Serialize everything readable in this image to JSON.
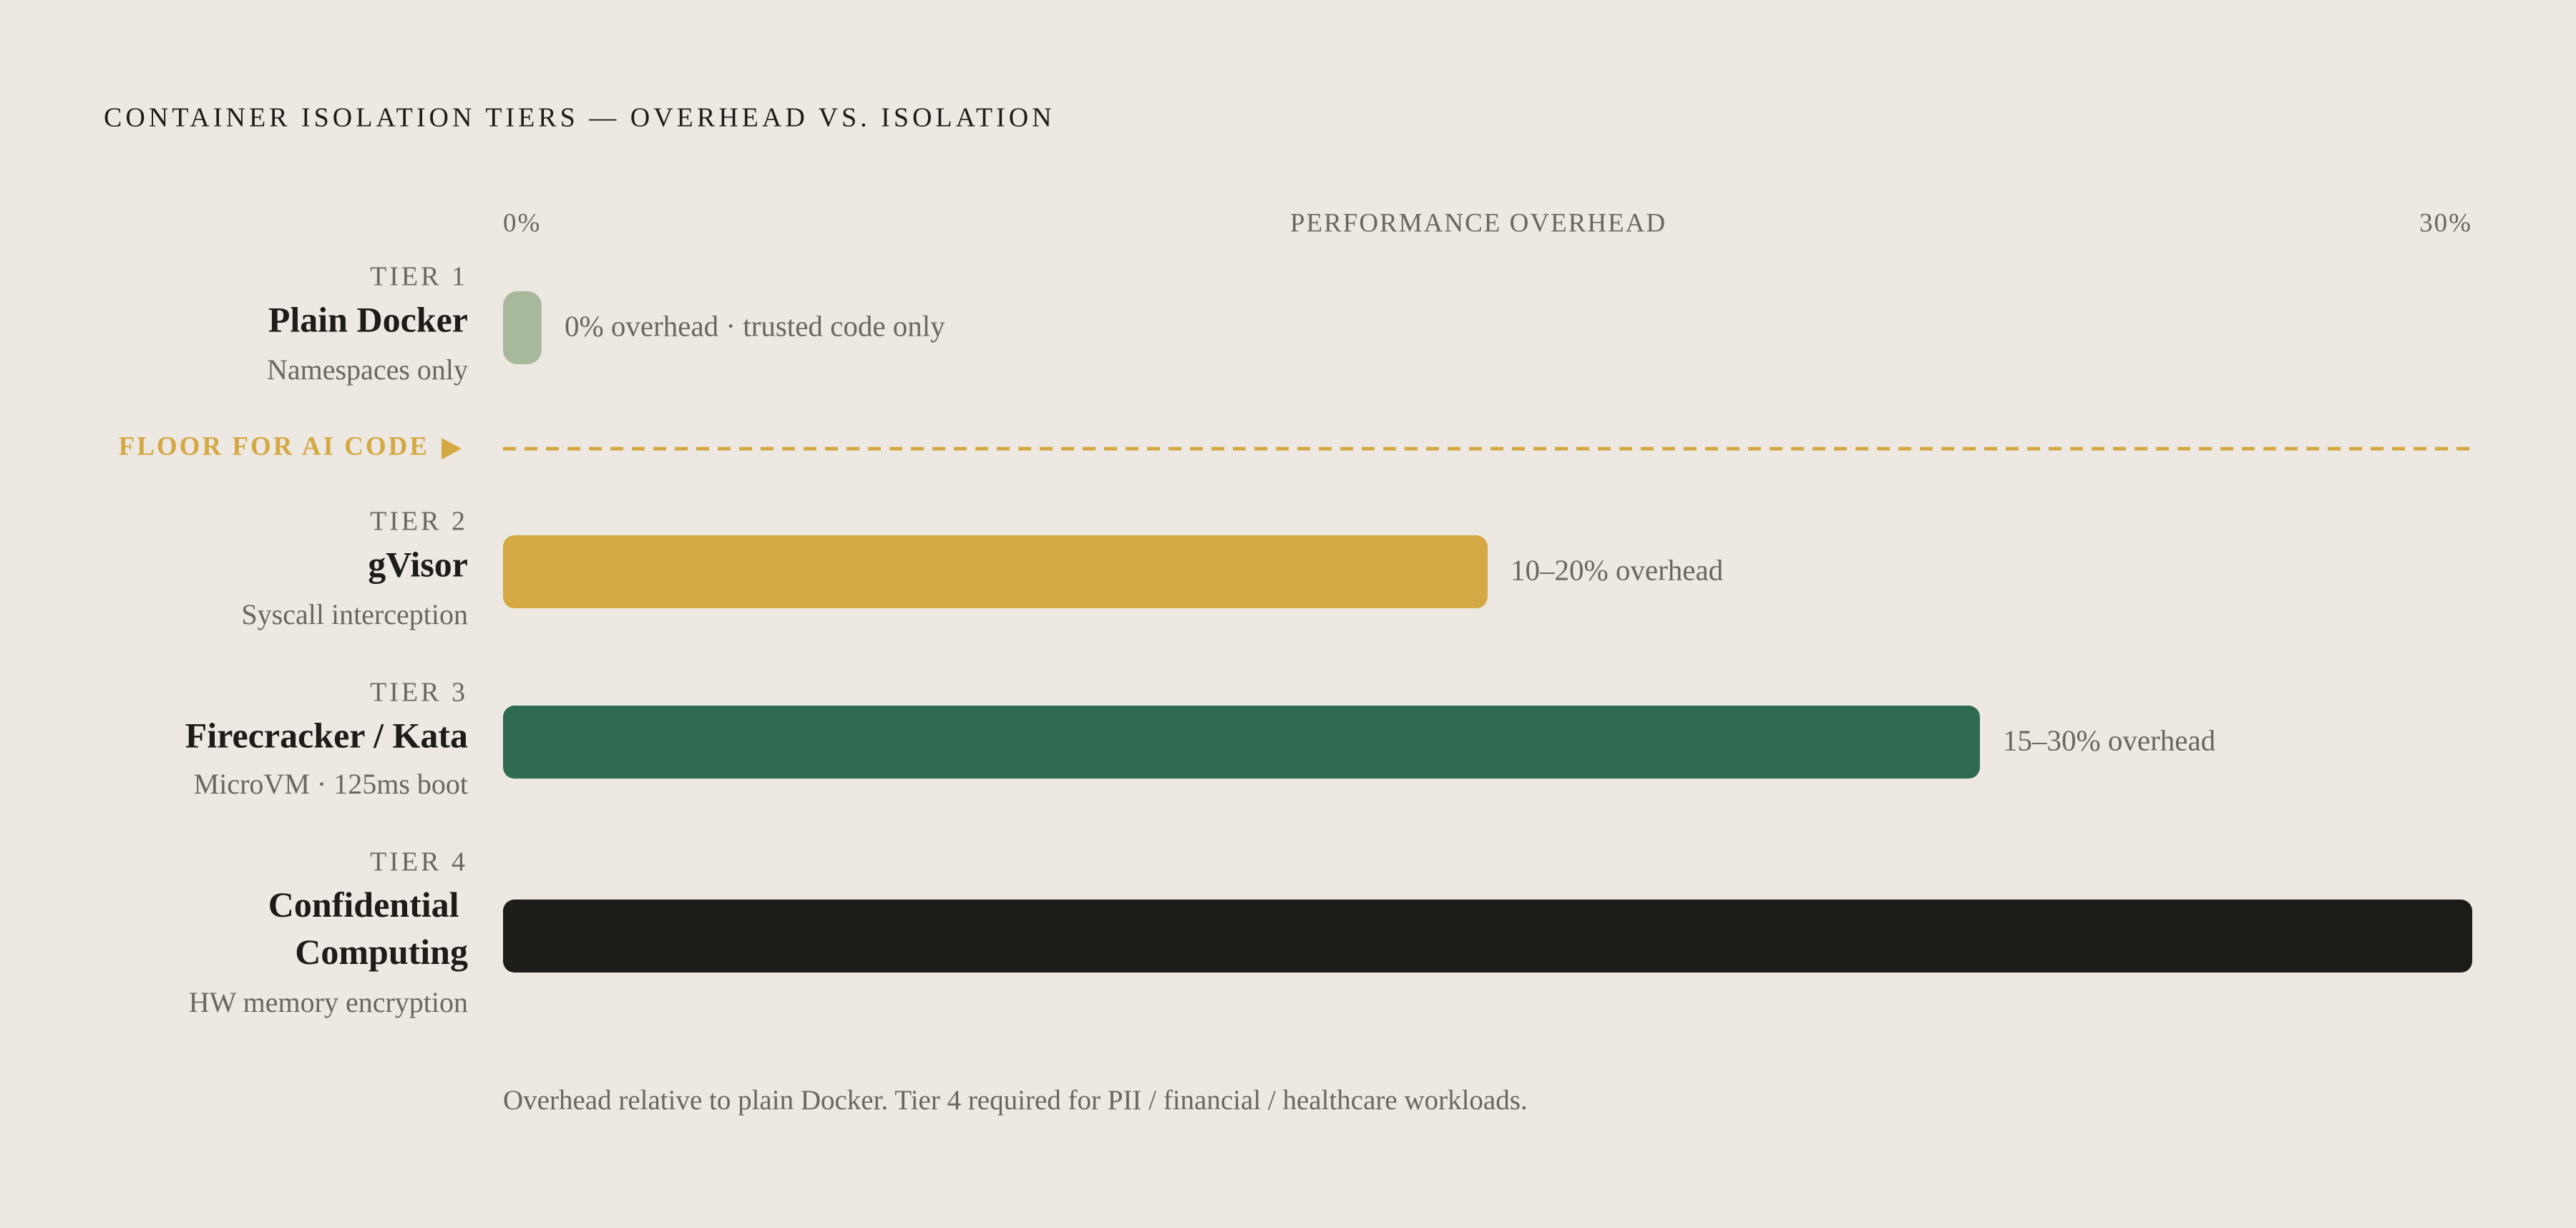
{
  "chart_data": {
    "type": "bar",
    "orientation": "horizontal",
    "title": "CONTAINER ISOLATION TIERS — OVERHEAD VS. ISOLATION",
    "x_label": "PERFORMANCE OVERHEAD",
    "xlim": [
      0,
      30
    ],
    "xticks": [
      {
        "value": 0,
        "label": "0%"
      },
      {
        "value": 30,
        "label": "30%"
      }
    ],
    "tiers": [
      "TIER 1",
      "TIER 2",
      "TIER 3",
      "TIER 4"
    ],
    "categories": [
      "Plain Docker",
      "gVisor",
      "Firecracker / Kata",
      "Confidential Computing"
    ],
    "descriptions": [
      "Namespaces only",
      "Syscall interception",
      "MicroVM · 125ms boot",
      "HW memory encryption"
    ],
    "values": [
      0,
      15,
      22.5,
      30
    ],
    "annotations": [
      "0% overhead · trusted code only",
      "10–20% overhead",
      "15–30% overhead",
      null
    ],
    "colors": [
      "#a8b89c",
      "#d4a843",
      "#2e6b50",
      "#1e1c18"
    ],
    "threshold": {
      "label": "FLOOR FOR AI CODE",
      "color": "#d4a843"
    },
    "footnote": "Overhead relative to plain Docker. Tier 4 required for PII / financial / healthcare workloads."
  }
}
